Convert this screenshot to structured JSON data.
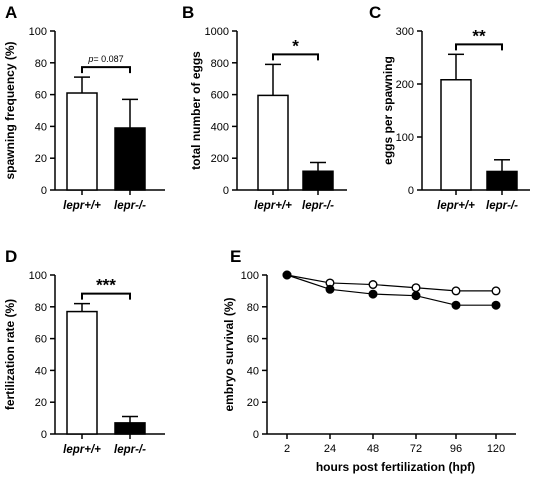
{
  "chart_data": [
    {
      "panel": "A",
      "type": "bar",
      "ylabel": "spawning frequency (%)",
      "ylim": [
        0,
        100
      ],
      "yticks": [
        0,
        20,
        40,
        60,
        80,
        100
      ],
      "categories": [
        "lepr+/+",
        "lepr-/-"
      ],
      "values": [
        61,
        39
      ],
      "errors": [
        10,
        18
      ],
      "fills": [
        "#ffffff",
        "#000000"
      ],
      "significance": {
        "prefix": "p",
        "text": "= 0.087"
      }
    },
    {
      "panel": "B",
      "type": "bar",
      "ylabel": "total number of eggs",
      "ylim": [
        0,
        1000
      ],
      "yticks": [
        0,
        200,
        400,
        600,
        800,
        1000
      ],
      "categories": [
        "lepr+/+",
        "lepr-/-"
      ],
      "values": [
        595,
        118
      ],
      "errors": [
        195,
        55
      ],
      "fills": [
        "#ffffff",
        "#000000"
      ],
      "significance": {
        "text": "*"
      }
    },
    {
      "panel": "C",
      "type": "bar",
      "ylabel": "eggs per spawning",
      "ylim": [
        0,
        300
      ],
      "yticks": [
        0,
        100,
        200,
        300
      ],
      "categories": [
        "lepr+/+",
        "lepr-/-"
      ],
      "values": [
        208,
        35
      ],
      "errors": [
        48,
        22
      ],
      "fills": [
        "#ffffff",
        "#000000"
      ],
      "significance": {
        "text": "**"
      }
    },
    {
      "panel": "D",
      "type": "bar",
      "ylabel": "fertilization rate (%)",
      "ylim": [
        0,
        100
      ],
      "yticks": [
        0,
        20,
        40,
        60,
        80,
        100
      ],
      "categories": [
        "lepr+/+",
        "lepr-/-"
      ],
      "values": [
        77,
        7
      ],
      "errors": [
        5,
        4
      ],
      "fills": [
        "#ffffff",
        "#000000"
      ],
      "significance": {
        "text": "***"
      }
    },
    {
      "panel": "E",
      "type": "line",
      "xlabel": "hours post fertilization (hpf)",
      "ylabel": "embryo survival (%)",
      "ylim": [
        0,
        100
      ],
      "yticks": [
        0,
        20,
        40,
        60,
        80,
        100
      ],
      "x": [
        2,
        24,
        48,
        72,
        96,
        120
      ],
      "series": [
        {
          "marker": "open-circle",
          "values": [
            100,
            95,
            94,
            92,
            90,
            90
          ]
        },
        {
          "marker": "filled-circle",
          "values": [
            100,
            91,
            88,
            87,
            81,
            81
          ]
        }
      ]
    }
  ]
}
